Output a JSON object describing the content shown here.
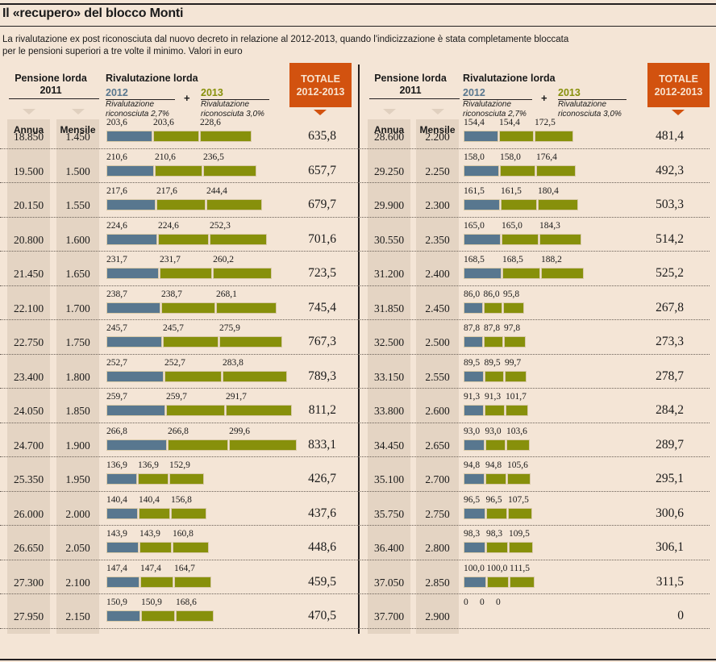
{
  "header": {
    "title": "Il «recupero» del blocco Monti",
    "subtitle_line1": "La rivalutazione ex post riconosciuta dal nuovo decreto in relazione al 2012-2013, quando l'indicizzazione è stata completamente bloccata",
    "subtitle_line2": "per le pensioni superiori a tre volte il minimo. Valori in euro"
  },
  "columns": {
    "pensione_line1": "Pensione lorda",
    "pensione_line2": "2011",
    "rivalutazione": "Rivalutazione lorda",
    "year2012": "2012",
    "year2013": "2013",
    "plus": "+",
    "rate2012_line1": "Rivalutazione",
    "rate2012_line2": "riconosciuta 2,7%",
    "rate2013_line1": "Rivalutazione",
    "rate2013_line2": "riconosciuta 3,0%",
    "totale_line1": "TOTALE",
    "totale_line2": "2012-2013",
    "annua": "Annua",
    "mensile": "Mensile"
  },
  "colors": {
    "series_2012": "#58778f",
    "series_2013": "#87900b",
    "totale_accent": "#d2520f",
    "background": "#f4e5d6"
  },
  "chart_data": {
    "type": "bar",
    "title": "Il «recupero» del blocco Monti",
    "orientation": "horizontal-stacked",
    "unit": "euro",
    "legend": [
      "2012 (Rivalutazione riconosciuta 2,7%)",
      "2013 (Rivalutazione riconosciuta 3,0%)"
    ],
    "note": "Each row shows three segments: 2012 value, then 2013 composed of the 2012 carryover plus the 2013 revaluation",
    "panels": [
      {
        "rows": [
          {
            "annua": "18.850",
            "mensile": "1.450",
            "v2012": "203,6",
            "v2013a": "203,6",
            "v2013b": "228,6",
            "totale": "635,8",
            "n": [
              203.6,
              203.6,
              228.6
            ]
          },
          {
            "annua": "19.500",
            "mensile": "1.500",
            "v2012": "210,6",
            "v2013a": "210,6",
            "v2013b": "236,5",
            "totale": "657,7",
            "n": [
              210.6,
              210.6,
              236.5
            ]
          },
          {
            "annua": "20.150",
            "mensile": "1.550",
            "v2012": "217,6",
            "v2013a": "217,6",
            "v2013b": "244,4",
            "totale": "679,7",
            "n": [
              217.6,
              217.6,
              244.4
            ]
          },
          {
            "annua": "20.800",
            "mensile": "1.600",
            "v2012": "224,6",
            "v2013a": "224,6",
            "v2013b": "252,3",
            "totale": "701,6",
            "n": [
              224.6,
              224.6,
              252.3
            ]
          },
          {
            "annua": "21.450",
            "mensile": "1.650",
            "v2012": "231,7",
            "v2013a": "231,7",
            "v2013b": "260,2",
            "totale": "723,5",
            "n": [
              231.7,
              231.7,
              260.2
            ]
          },
          {
            "annua": "22.100",
            "mensile": "1.700",
            "v2012": "238,7",
            "v2013a": "238,7",
            "v2013b": "268,1",
            "totale": "745,4",
            "n": [
              238.7,
              238.7,
              268.1
            ]
          },
          {
            "annua": "22.750",
            "mensile": "1.750",
            "v2012": "245,7",
            "v2013a": "245,7",
            "v2013b": "275,9",
            "totale": "767,3",
            "n": [
              245.7,
              245.7,
              275.9
            ]
          },
          {
            "annua": "23.400",
            "mensile": "1.800",
            "v2012": "252,7",
            "v2013a": "252,7",
            "v2013b": "283,8",
            "totale": "789,3",
            "n": [
              252.7,
              252.7,
              283.8
            ]
          },
          {
            "annua": "24.050",
            "mensile": "1.850",
            "v2012": "259,7",
            "v2013a": "259,7",
            "v2013b": "291,7",
            "totale": "811,2",
            "n": [
              259.7,
              259.7,
              291.7
            ]
          },
          {
            "annua": "24.700",
            "mensile": "1.900",
            "v2012": "266,8",
            "v2013a": "266,8",
            "v2013b": "299,6",
            "totale": "833,1",
            "n": [
              266.8,
              266.8,
              299.6
            ]
          },
          {
            "annua": "25.350",
            "mensile": "1.950",
            "v2012": "136,9",
            "v2013a": "136,9",
            "v2013b": "152,9",
            "totale": "426,7",
            "n": [
              136.9,
              136.9,
              152.9
            ]
          },
          {
            "annua": "26.000",
            "mensile": "2.000",
            "v2012": "140,4",
            "v2013a": "140,4",
            "v2013b": "156,8",
            "totale": "437,6",
            "n": [
              140.4,
              140.4,
              156.8
            ]
          },
          {
            "annua": "26.650",
            "mensile": "2.050",
            "v2012": "143,9",
            "v2013a": "143,9",
            "v2013b": "160,8",
            "totale": "448,6",
            "n": [
              143.9,
              143.9,
              160.8
            ]
          },
          {
            "annua": "27.300",
            "mensile": "2.100",
            "v2012": "147,4",
            "v2013a": "147,4",
            "v2013b": "164,7",
            "totale": "459,5",
            "n": [
              147.4,
              147.4,
              164.7
            ]
          },
          {
            "annua": "27.950",
            "mensile": "2.150",
            "v2012": "150,9",
            "v2013a": "150,9",
            "v2013b": "168,6",
            "totale": "470,5",
            "n": [
              150.9,
              150.9,
              168.6
            ]
          }
        ]
      },
      {
        "rows": [
          {
            "annua": "28.600",
            "mensile": "2.200",
            "v2012": "154,4",
            "v2013a": "154,4",
            "v2013b": "172,5",
            "totale": "481,4",
            "n": [
              154.4,
              154.4,
              172.5
            ]
          },
          {
            "annua": "29.250",
            "mensile": "2.250",
            "v2012": "158,0",
            "v2013a": "158,0",
            "v2013b": "176,4",
            "totale": "492,3",
            "n": [
              158.0,
              158.0,
              176.4
            ]
          },
          {
            "annua": "29.900",
            "mensile": "2.300",
            "v2012": "161,5",
            "v2013a": "161,5",
            "v2013b": "180,4",
            "totale": "503,3",
            "n": [
              161.5,
              161.5,
              180.4
            ]
          },
          {
            "annua": "30.550",
            "mensile": "2.350",
            "v2012": "165,0",
            "v2013a": "165,0",
            "v2013b": "184,3",
            "totale": "514,2",
            "n": [
              165.0,
              165.0,
              184.3
            ]
          },
          {
            "annua": "31.200",
            "mensile": "2.400",
            "v2012": "168,5",
            "v2013a": "168,5",
            "v2013b": "188,2",
            "totale": "525,2",
            "n": [
              168.5,
              168.5,
              188.2
            ]
          },
          {
            "annua": "31.850",
            "mensile": "2.450",
            "v2012": "86,0",
            "v2013a": "86,0",
            "v2013b": "95,8",
            "totale": "267,8",
            "n": [
              86.0,
              86.0,
              95.8
            ]
          },
          {
            "annua": "32.500",
            "mensile": "2.500",
            "v2012": "87,8",
            "v2013a": "87,8",
            "v2013b": "97,8",
            "totale": "273,3",
            "n": [
              87.8,
              87.8,
              97.8
            ]
          },
          {
            "annua": "33.150",
            "mensile": "2.550",
            "v2012": "89,5",
            "v2013a": "89,5",
            "v2013b": "99,7",
            "totale": "278,7",
            "n": [
              89.5,
              89.5,
              99.7
            ]
          },
          {
            "annua": "33.800",
            "mensile": "2.600",
            "v2012": "91,3",
            "v2013a": "91,3",
            "v2013b": "101,7",
            "totale": "284,2",
            "n": [
              91.3,
              91.3,
              101.7
            ]
          },
          {
            "annua": "34.450",
            "mensile": "2.650",
            "v2012": "93,0",
            "v2013a": "93,0",
            "v2013b": "103,6",
            "totale": "289,7",
            "n": [
              93.0,
              93.0,
              103.6
            ]
          },
          {
            "annua": "35.100",
            "mensile": "2.700",
            "v2012": "94,8",
            "v2013a": "94,8",
            "v2013b": "105,6",
            "totale": "295,1",
            "n": [
              94.8,
              94.8,
              105.6
            ]
          },
          {
            "annua": "35.750",
            "mensile": "2.750",
            "v2012": "96,5",
            "v2013a": "96,5",
            "v2013b": "107,5",
            "totale": "300,6",
            "n": [
              96.5,
              96.5,
              107.5
            ]
          },
          {
            "annua": "36.400",
            "mensile": "2.800",
            "v2012": "98,3",
            "v2013a": "98,3",
            "v2013b": "109,5",
            "totale": "306,1",
            "n": [
              98.3,
              98.3,
              109.5
            ]
          },
          {
            "annua": "37.050",
            "mensile": "2.850",
            "v2012": "100,0",
            "v2013a": "100,0",
            "v2013b": "111,5",
            "totale": "311,5",
            "n": [
              100.0,
              100.0,
              111.5
            ]
          },
          {
            "annua": "37.700",
            "mensile": "2.900",
            "v2012": "0",
            "v2013a": "0",
            "v2013b": "0",
            "totale": "0",
            "n": [
              0,
              0,
              0
            ]
          }
        ]
      }
    ]
  }
}
